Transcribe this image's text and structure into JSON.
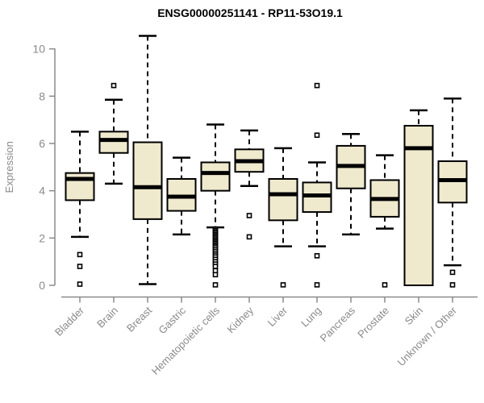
{
  "colors": {
    "box_fill": "#EFE9CE",
    "box_border": "#000000",
    "median": "#000000",
    "whisker": "#000000",
    "axis": "#8A8A8A",
    "tick_label": "#8A8A8A",
    "title": "#000000"
  },
  "chart_data": {
    "type": "boxplot",
    "title": "ENSG00000251141 - RP11-53O19.1",
    "xlabel": "",
    "ylabel": "Expression",
    "ylim": [
      0,
      10.6
    ],
    "yticks": [
      0,
      2,
      4,
      6,
      8,
      10
    ],
    "grid": false,
    "categories": [
      "Bladder",
      "Brain",
      "Breast",
      "Gastric",
      "Hematopoietic cells",
      "Kidney",
      "Liver",
      "Lung",
      "Pancreas",
      "Prostate",
      "Skin",
      "Unknown / Other"
    ],
    "boxes": [
      {
        "name": "Bladder",
        "whisker_low": 2.05,
        "q1": 3.6,
        "median": 4.5,
        "q3": 4.75,
        "whisker_high": 6.5,
        "outliers": [
          1.3,
          0.8,
          0.05
        ]
      },
      {
        "name": "Brain",
        "whisker_low": 4.3,
        "q1": 5.6,
        "median": 6.15,
        "q3": 6.5,
        "whisker_high": 7.85,
        "outliers": [
          8.45
        ]
      },
      {
        "name": "Breast",
        "whisker_low": 0.05,
        "q1": 2.8,
        "median": 4.15,
        "q3": 6.05,
        "whisker_high": 10.55,
        "outliers": []
      },
      {
        "name": "Gastric",
        "whisker_low": 2.15,
        "q1": 3.15,
        "median": 3.75,
        "q3": 4.5,
        "whisker_high": 5.4,
        "outliers": []
      },
      {
        "name": "Hematopoietic cells",
        "whisker_low": 2.45,
        "q1": 4.0,
        "median": 4.75,
        "q3": 5.2,
        "whisker_high": 6.8,
        "outliers": [
          2.38,
          2.32,
          2.26,
          2.2,
          2.14,
          2.08,
          2.02,
          1.96,
          1.9,
          1.84,
          1.78,
          1.72,
          1.66,
          1.6,
          1.52,
          1.44,
          1.36,
          1.28,
          1.2,
          1.1,
          1.0,
          0.9,
          0.8,
          0.62,
          0.45,
          0.02
        ]
      },
      {
        "name": "Kidney",
        "whisker_low": 4.2,
        "q1": 4.8,
        "median": 5.25,
        "q3": 5.75,
        "whisker_high": 6.55,
        "outliers": [
          2.95,
          2.05
        ]
      },
      {
        "name": "Liver",
        "whisker_low": 1.65,
        "q1": 2.75,
        "median": 3.85,
        "q3": 4.5,
        "whisker_high": 5.8,
        "outliers": [
          0.02
        ]
      },
      {
        "name": "Lung",
        "whisker_low": 1.65,
        "q1": 3.1,
        "median": 3.8,
        "q3": 4.35,
        "whisker_high": 5.2,
        "outliers": [
          8.45,
          6.35,
          1.25,
          0.02
        ]
      },
      {
        "name": "Pancreas",
        "whisker_low": 2.15,
        "q1": 4.1,
        "median": 5.05,
        "q3": 5.9,
        "whisker_high": 6.4,
        "outliers": []
      },
      {
        "name": "Prostate",
        "whisker_low": 2.4,
        "q1": 2.9,
        "median": 3.65,
        "q3": 4.45,
        "whisker_high": 5.5,
        "outliers": [
          0.02
        ]
      },
      {
        "name": "Skin",
        "whisker_low": 0.0,
        "q1": 0.0,
        "median": 5.8,
        "q3": 6.75,
        "whisker_high": 7.4,
        "outliers": []
      },
      {
        "name": "Unknown / Other",
        "whisker_low": 0.85,
        "q1": 3.5,
        "median": 4.45,
        "q3": 5.25,
        "whisker_high": 7.9,
        "outliers": [
          0.55,
          0.02
        ]
      }
    ]
  }
}
